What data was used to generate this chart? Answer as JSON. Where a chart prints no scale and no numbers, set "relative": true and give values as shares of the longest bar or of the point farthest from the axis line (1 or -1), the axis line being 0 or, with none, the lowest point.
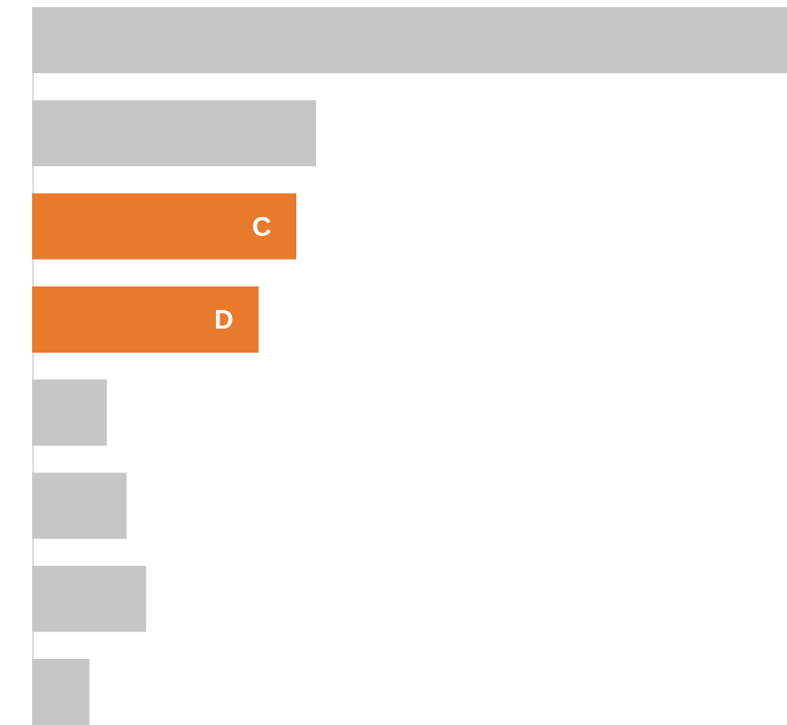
{
  "chart_data": {
    "type": "bar",
    "orientation": "horizontal",
    "relative": true,
    "categories": [
      null,
      null,
      "C",
      "D",
      null,
      null,
      null,
      null
    ],
    "values": [
      1,
      0.376,
      0.35,
      0.3,
      0.099,
      0.125,
      0.151,
      0.076
    ],
    "colors": [
      "#c6c6c6",
      "#c6c6c6",
      "#e87a2c",
      "#e87a2c",
      "#c6c6c6",
      "#c6c6c6",
      "#c6c6c6",
      "#c6c6c6"
    ]
  }
}
